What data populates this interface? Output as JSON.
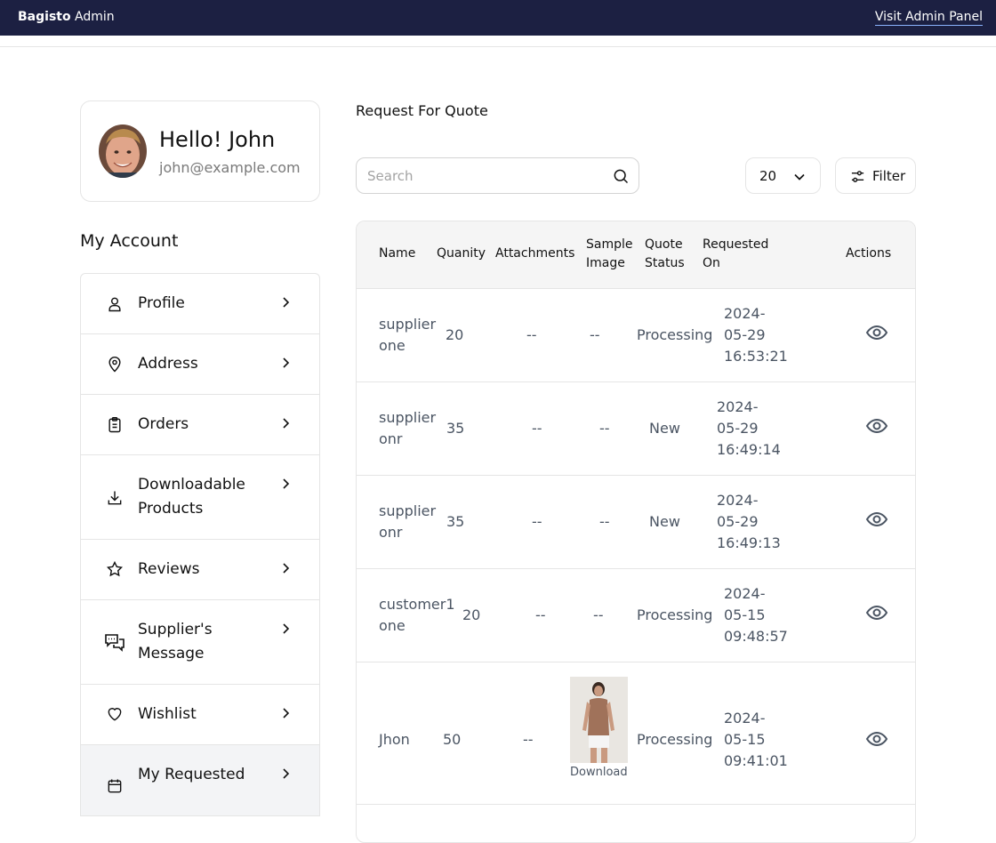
{
  "topbar": {
    "brand_bold": "Bagisto",
    "brand_rest": " Admin",
    "visit_link": "Visit Admin Panel"
  },
  "profile": {
    "greeting": "Hello! John",
    "email": "john@example.com"
  },
  "sidebar": {
    "title": "My Account",
    "items": [
      {
        "label": "Profile",
        "icon": "user-icon"
      },
      {
        "label": "Address",
        "icon": "location-icon"
      },
      {
        "label": "Orders",
        "icon": "clipboard-icon"
      },
      {
        "label": "Downloadable Products",
        "icon": "download-icon"
      },
      {
        "label": "Reviews",
        "icon": "star-icon"
      },
      {
        "label": "Supplier's Message",
        "icon": "chat-icon"
      },
      {
        "label": "Wishlist",
        "icon": "heart-icon"
      },
      {
        "label": "My Requested",
        "icon": "calendar-icon"
      }
    ]
  },
  "main": {
    "title": "Request For Quote",
    "search_placeholder": "Search",
    "per_page": "20",
    "filter_label": "Filter",
    "columns": [
      "Name",
      "Quanity",
      "Attachments",
      "Sample Image",
      "Quote Status",
      "Requested On",
      "Actions"
    ],
    "rows": [
      {
        "name": "supplier one",
        "quantity": "20",
        "attachments": "--",
        "sample_image": "--",
        "status": "Processing",
        "requested_on": "2024-05-29 16:53:21"
      },
      {
        "name": "supplier onr",
        "quantity": "35",
        "attachments": "--",
        "sample_image": "--",
        "status": "New",
        "requested_on": "2024-05-29 16:49:14"
      },
      {
        "name": "supplier onr",
        "quantity": "35",
        "attachments": "--",
        "sample_image": "--",
        "status": "New",
        "requested_on": "2024-05-29 16:49:13"
      },
      {
        "name": "customer1 one",
        "quantity": "20",
        "attachments": "--",
        "sample_image": "--",
        "status": "Processing",
        "requested_on": "2024-05-15 09:48:57"
      },
      {
        "name": "Jhon",
        "quantity": "50",
        "attachments": "--",
        "sample_image": "Download",
        "status": "Processing",
        "requested_on": "2024-05-15 09:41:01"
      }
    ]
  },
  "colors": {
    "topbar_bg": "#1c2042",
    "border": "#e5e5e5",
    "header_bg": "#f5f5f5"
  }
}
